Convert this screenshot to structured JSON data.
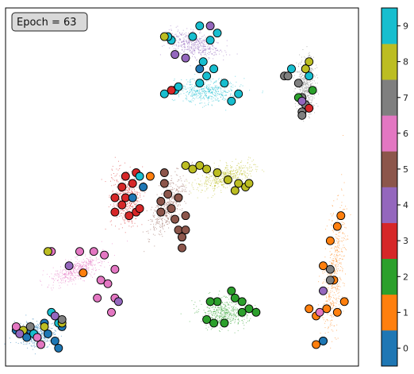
{
  "chart_data": {
    "type": "scatter",
    "title": "",
    "annotation": "Epoch = 63",
    "xlabel": "",
    "ylabel": "",
    "grid": false,
    "axis_ticks_visible": false,
    "colorbar": {
      "ticks": [
        "0",
        "1",
        "2",
        "3",
        "4",
        "5",
        "6",
        "7",
        "8",
        "9"
      ],
      "colors": [
        "#1f77b4",
        "#ff7f0e",
        "#2ca02c",
        "#d62728",
        "#9467bd",
        "#8c564b",
        "#e377c2",
        "#7f7f7f",
        "#bcbd22",
        "#17becf"
      ]
    },
    "clusters": [
      {
        "label": 0,
        "center": [
          0.09,
          0.09
        ],
        "spread": [
          0.05,
          0.03
        ],
        "angle": -5
      },
      {
        "label": 1,
        "center": [
          0.93,
          0.27
        ],
        "spread": [
          0.025,
          0.17
        ],
        "angle": 5
      },
      {
        "label": 2,
        "center": [
          0.62,
          0.15
        ],
        "spread": [
          0.06,
          0.035
        ],
        "angle": 0
      },
      {
        "label": 3,
        "center": [
          0.34,
          0.47
        ],
        "spread": [
          0.035,
          0.07
        ],
        "angle": -5
      },
      {
        "label": 4,
        "center": [
          0.53,
          0.9
        ],
        "spread": [
          0.07,
          0.03
        ],
        "angle": 20
      },
      {
        "label": 5,
        "center": [
          0.46,
          0.45
        ],
        "spread": [
          0.03,
          0.08
        ],
        "angle": 25
      },
      {
        "label": 6,
        "center": [
          0.2,
          0.27
        ],
        "spread": [
          0.07,
          0.025
        ],
        "angle": -25
      },
      {
        "label": 7,
        "center": [
          0.85,
          0.78
        ],
        "spread": [
          0.025,
          0.07
        ],
        "angle": 0
      },
      {
        "label": 8,
        "center": [
          0.62,
          0.53
        ],
        "spread": [
          0.08,
          0.025
        ],
        "angle": -20
      },
      {
        "label": 9,
        "center": [
          0.57,
          0.77
        ],
        "spread": [
          0.08,
          0.03
        ],
        "angle": 0
      }
    ],
    "highlighted_points": [
      {
        "x": 0.03,
        "y": 0.1,
        "label": 0
      },
      {
        "x": 0.07,
        "y": 0.1,
        "label": 0
      },
      {
        "x": 0.11,
        "y": 0.12,
        "label": 0
      },
      {
        "x": 0.16,
        "y": 0.11,
        "label": 0
      },
      {
        "x": 0.14,
        "y": 0.07,
        "label": 0
      },
      {
        "x": 0.15,
        "y": 0.05,
        "label": 0
      },
      {
        "x": 0.06,
        "y": 0.08,
        "label": 0
      },
      {
        "x": 0.12,
        "y": 0.09,
        "label": 0
      },
      {
        "x": 0.15,
        "y": 0.12,
        "label": 9
      },
      {
        "x": 0.13,
        "y": 0.15,
        "label": 9
      },
      {
        "x": 0.08,
        "y": 0.09,
        "label": 9
      },
      {
        "x": 0.05,
        "y": 0.1,
        "label": 8
      },
      {
        "x": 0.11,
        "y": 0.11,
        "label": 8
      },
      {
        "x": 0.16,
        "y": 0.12,
        "label": 8
      },
      {
        "x": 0.03,
        "y": 0.11,
        "label": 6
      },
      {
        "x": 0.09,
        "y": 0.08,
        "label": 6
      },
      {
        "x": 0.1,
        "y": 0.06,
        "label": 6
      },
      {
        "x": 0.14,
        "y": 0.14,
        "label": 4
      },
      {
        "x": 0.04,
        "y": 0.09,
        "label": 4
      },
      {
        "x": 0.07,
        "y": 0.11,
        "label": 7
      },
      {
        "x": 0.16,
        "y": 0.13,
        "label": 7
      },
      {
        "x": 0.95,
        "y": 0.42,
        "label": 1
      },
      {
        "x": 0.94,
        "y": 0.39,
        "label": 1
      },
      {
        "x": 0.92,
        "y": 0.35,
        "label": 1
      },
      {
        "x": 0.9,
        "y": 0.28,
        "label": 1
      },
      {
        "x": 0.93,
        "y": 0.24,
        "label": 1
      },
      {
        "x": 0.86,
        "y": 0.16,
        "label": 1
      },
      {
        "x": 0.96,
        "y": 0.18,
        "label": 1
      },
      {
        "x": 0.94,
        "y": 0.15,
        "label": 1
      },
      {
        "x": 0.9,
        "y": 0.07,
        "label": 1
      },
      {
        "x": 0.88,
        "y": 0.06,
        "label": 1
      },
      {
        "x": 0.88,
        "y": 0.14,
        "label": 1
      },
      {
        "x": 0.91,
        "y": 0.16,
        "label": 1
      },
      {
        "x": 0.9,
        "y": 0.07,
        "label": 0
      },
      {
        "x": 0.89,
        "y": 0.15,
        "label": 6
      },
      {
        "x": 0.9,
        "y": 0.21,
        "label": 4
      },
      {
        "x": 0.92,
        "y": 0.27,
        "label": 7
      },
      {
        "x": 0.92,
        "y": 0.24,
        "label": 7
      },
      {
        "x": 0.64,
        "y": 0.21,
        "label": 2
      },
      {
        "x": 0.65,
        "y": 0.19,
        "label": 2
      },
      {
        "x": 0.6,
        "y": 0.18,
        "label": 2
      },
      {
        "x": 0.67,
        "y": 0.18,
        "label": 2
      },
      {
        "x": 0.69,
        "y": 0.16,
        "label": 2
      },
      {
        "x": 0.67,
        "y": 0.15,
        "label": 2
      },
      {
        "x": 0.71,
        "y": 0.15,
        "label": 2
      },
      {
        "x": 0.57,
        "y": 0.13,
        "label": 2
      },
      {
        "x": 0.59,
        "y": 0.12,
        "label": 2
      },
      {
        "x": 0.62,
        "y": 0.12,
        "label": 2
      },
      {
        "x": 0.58,
        "y": 0.18,
        "label": 2
      },
      {
        "x": 0.37,
        "y": 0.54,
        "label": 3
      },
      {
        "x": 0.36,
        "y": 0.51,
        "label": 3
      },
      {
        "x": 0.33,
        "y": 0.5,
        "label": 3
      },
      {
        "x": 0.31,
        "y": 0.47,
        "label": 3
      },
      {
        "x": 0.34,
        "y": 0.47,
        "label": 3
      },
      {
        "x": 0.33,
        "y": 0.45,
        "label": 3
      },
      {
        "x": 0.31,
        "y": 0.43,
        "label": 3
      },
      {
        "x": 0.37,
        "y": 0.43,
        "label": 3
      },
      {
        "x": 0.35,
        "y": 0.42,
        "label": 3
      },
      {
        "x": 0.38,
        "y": 0.44,
        "label": 3
      },
      {
        "x": 0.34,
        "y": 0.53,
        "label": 3
      },
      {
        "x": 0.38,
        "y": 0.53,
        "label": 9
      },
      {
        "x": 0.36,
        "y": 0.47,
        "label": 0
      },
      {
        "x": 0.39,
        "y": 0.5,
        "label": 0
      },
      {
        "x": 0.41,
        "y": 0.53,
        "label": 1
      },
      {
        "x": 0.25,
        "y": 0.32,
        "label": 6
      },
      {
        "x": 0.28,
        "y": 0.31,
        "label": 6
      },
      {
        "x": 0.31,
        "y": 0.27,
        "label": 6
      },
      {
        "x": 0.27,
        "y": 0.24,
        "label": 6
      },
      {
        "x": 0.29,
        "y": 0.23,
        "label": 6
      },
      {
        "x": 0.26,
        "y": 0.19,
        "label": 6
      },
      {
        "x": 0.3,
        "y": 0.15,
        "label": 6
      },
      {
        "x": 0.31,
        "y": 0.19,
        "label": 6
      },
      {
        "x": 0.21,
        "y": 0.32,
        "label": 6
      },
      {
        "x": 0.13,
        "y": 0.32,
        "label": 6
      },
      {
        "x": 0.18,
        "y": 0.28,
        "label": 4
      },
      {
        "x": 0.12,
        "y": 0.32,
        "label": 8
      },
      {
        "x": 0.22,
        "y": 0.26,
        "label": 1
      },
      {
        "x": 0.32,
        "y": 0.18,
        "label": 4
      },
      {
        "x": 0.45,
        "y": 0.54,
        "label": 5
      },
      {
        "x": 0.45,
        "y": 0.51,
        "label": 5
      },
      {
        "x": 0.46,
        "y": 0.48,
        "label": 5
      },
      {
        "x": 0.49,
        "y": 0.47,
        "label": 5
      },
      {
        "x": 0.47,
        "y": 0.44,
        "label": 5
      },
      {
        "x": 0.44,
        "y": 0.43,
        "label": 5
      },
      {
        "x": 0.51,
        "y": 0.42,
        "label": 5
      },
      {
        "x": 0.48,
        "y": 0.41,
        "label": 5
      },
      {
        "x": 0.49,
        "y": 0.38,
        "label": 5
      },
      {
        "x": 0.5,
        "y": 0.33,
        "label": 5
      },
      {
        "x": 0.51,
        "y": 0.38,
        "label": 5
      },
      {
        "x": 0.44,
        "y": 0.46,
        "label": 5
      },
      {
        "x": 0.5,
        "y": 0.36,
        "label": 4
      },
      {
        "x": 0.5,
        "y": 0.36,
        "label": 5
      },
      {
        "x": 0.51,
        "y": 0.56,
        "label": 8
      },
      {
        "x": 0.53,
        "y": 0.55,
        "label": 8
      },
      {
        "x": 0.55,
        "y": 0.56,
        "label": 8
      },
      {
        "x": 0.57,
        "y": 0.55,
        "label": 8
      },
      {
        "x": 0.6,
        "y": 0.54,
        "label": 8
      },
      {
        "x": 0.63,
        "y": 0.52,
        "label": 8
      },
      {
        "x": 0.65,
        "y": 0.49,
        "label": 8
      },
      {
        "x": 0.68,
        "y": 0.5,
        "label": 8
      },
      {
        "x": 0.69,
        "y": 0.51,
        "label": 8
      },
      {
        "x": 0.66,
        "y": 0.51,
        "label": 8
      },
      {
        "x": 0.59,
        "y": 0.83,
        "label": 9
      },
      {
        "x": 0.56,
        "y": 0.85,
        "label": 9
      },
      {
        "x": 0.58,
        "y": 0.91,
        "label": 9
      },
      {
        "x": 0.53,
        "y": 0.92,
        "label": 9
      },
      {
        "x": 0.47,
        "y": 0.91,
        "label": 9
      },
      {
        "x": 0.46,
        "y": 0.92,
        "label": 9
      },
      {
        "x": 0.55,
        "y": 0.95,
        "label": 9
      },
      {
        "x": 0.6,
        "y": 0.93,
        "label": 9
      },
      {
        "x": 0.45,
        "y": 0.92,
        "label": 8
      },
      {
        "x": 0.48,
        "y": 0.87,
        "label": 4
      },
      {
        "x": 0.51,
        "y": 0.86,
        "label": 4
      },
      {
        "x": 0.58,
        "y": 0.95,
        "label": 4
      },
      {
        "x": 0.55,
        "y": 0.83,
        "label": 0
      },
      {
        "x": 0.48,
        "y": 0.77,
        "label": 9
      },
      {
        "x": 0.45,
        "y": 0.76,
        "label": 9
      },
      {
        "x": 0.49,
        "y": 0.78,
        "label": 9
      },
      {
        "x": 0.55,
        "y": 0.79,
        "label": 9
      },
      {
        "x": 0.62,
        "y": 0.79,
        "label": 9
      },
      {
        "x": 0.66,
        "y": 0.76,
        "label": 9
      },
      {
        "x": 0.64,
        "y": 0.74,
        "label": 9
      },
      {
        "x": 0.57,
        "y": 0.81,
        "label": 9
      },
      {
        "x": 0.47,
        "y": 0.77,
        "label": 3
      },
      {
        "x": 0.79,
        "y": 0.81,
        "label": 7
      },
      {
        "x": 0.8,
        "y": 0.81,
        "label": 7
      },
      {
        "x": 0.85,
        "y": 0.83,
        "label": 7
      },
      {
        "x": 0.83,
        "y": 0.79,
        "label": 7
      },
      {
        "x": 0.84,
        "y": 0.75,
        "label": 7
      },
      {
        "x": 0.85,
        "y": 0.73,
        "label": 7
      },
      {
        "x": 0.84,
        "y": 0.71,
        "label": 7
      },
      {
        "x": 0.84,
        "y": 0.7,
        "label": 7
      },
      {
        "x": 0.81,
        "y": 0.83,
        "label": 9
      },
      {
        "x": 0.86,
        "y": 0.81,
        "label": 9
      },
      {
        "x": 0.83,
        "y": 0.75,
        "label": 2
      },
      {
        "x": 0.87,
        "y": 0.77,
        "label": 2
      },
      {
        "x": 0.86,
        "y": 0.72,
        "label": 3
      },
      {
        "x": 0.85,
        "y": 0.83,
        "label": 8
      },
      {
        "x": 0.86,
        "y": 0.85,
        "label": 8
      },
      {
        "x": 0.84,
        "y": 0.74,
        "label": 4
      }
    ]
  }
}
